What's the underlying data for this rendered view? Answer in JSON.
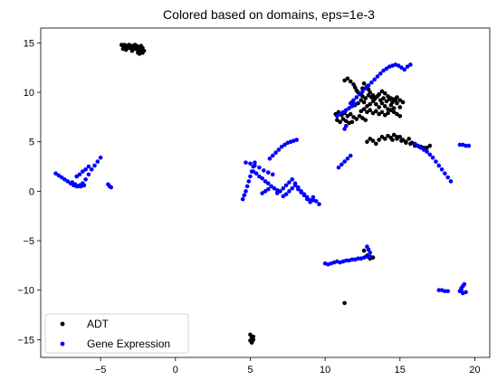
{
  "chart_data": {
    "type": "scatter",
    "title": "Colored based on domains, eps=1e-3",
    "xlabel": "",
    "ylabel": "",
    "xlim": [
      -9,
      21
    ],
    "ylim": [
      -16.8,
      16.5
    ],
    "xticks": [
      -5,
      0,
      5,
      10,
      15,
      20
    ],
    "yticks": [
      -15,
      -10,
      -5,
      0,
      5,
      10,
      15
    ],
    "xtick_labels": [
      "−5",
      "0",
      "5",
      "10",
      "15",
      "20"
    ],
    "ytick_labels": [
      "−15",
      "−10",
      "−5",
      "0",
      "5",
      "10",
      "15"
    ],
    "grid": false,
    "legend_position": "lower-left",
    "series": [
      {
        "name": "ADT",
        "color": "#000000",
        "x": [
          -3.6,
          -3.5,
          -3.4,
          -3.3,
          -3.2,
          -3.1,
          -3.0,
          -2.9,
          -2.8,
          -2.7,
          -2.6,
          -2.5,
          -2.4,
          -2.3,
          -2.2,
          -2.1,
          -3.5,
          -3.3,
          -3.1,
          -2.9,
          -2.7,
          -2.5,
          -2.3,
          -2.5,
          -2.4,
          -2.3,
          -2.2,
          -2.6,
          -2.3,
          5.0,
          5.1,
          5.2,
          5.1,
          5.0,
          5.2,
          5.1,
          11.3,
          11.3,
          11.5,
          11.7,
          11.9,
          12.0,
          12.1,
          12.2,
          12.4,
          12.5,
          12.6,
          12.8,
          12.9,
          13.0,
          13.2,
          13.4,
          13.6,
          13.8,
          14.0,
          14.2,
          14.4,
          14.6,
          14.8,
          15.0,
          15.2,
          11.8,
          12.0,
          12.2,
          12.4,
          12.6,
          12.8,
          13.0,
          13.2,
          13.4,
          13.6,
          13.8,
          14.0,
          14.2,
          14.4,
          14.6,
          14.8,
          15.0,
          12.5,
          12.7,
          12.9,
          13.1,
          13.3,
          13.5,
          13.7,
          13.9,
          14.1,
          14.3,
          14.5,
          14.7,
          12.4,
          12.6,
          12.8,
          13.0,
          13.2,
          13.4,
          13.6,
          13.8,
          14.0,
          14.2,
          14.4,
          14.6,
          14.8,
          15.0,
          10.7,
          10.9,
          11.1,
          11.3,
          11.5,
          11.7,
          11.9,
          12.1,
          12.3,
          12.5,
          12.7,
          10.8,
          11.0,
          11.2,
          11.4,
          11.6,
          11.8,
          12.8,
          13.0,
          13.2,
          13.4,
          13.6,
          13.8,
          14.0,
          14.2,
          14.4,
          14.6,
          14.8,
          15.0,
          15.2,
          15.4,
          15.6,
          15.8,
          16.0,
          16.2,
          16.4,
          16.6,
          16.8,
          17.0,
          14.5,
          14.8,
          15.1,
          15.4,
          15.7,
          16.0,
          16.3,
          16.6,
          12.6,
          12.8,
          13.0,
          13.2
        ],
        "y": [
          14.8,
          14.7,
          14.8,
          14.6,
          14.7,
          14.8,
          14.5,
          14.7,
          14.6,
          14.8,
          14.7,
          14.4,
          14.6,
          14.3,
          14.5,
          14.2,
          14.4,
          14.3,
          14.5,
          14.2,
          14.4,
          14.0,
          14.2,
          14.1,
          13.9,
          14.3,
          14.0,
          14.6,
          14.7,
          -14.5,
          -14.8,
          -15.0,
          -15.2,
          -15.1,
          -14.7,
          -15.3,
          -11.3,
          11.2,
          11.4,
          11.1,
          10.8,
          10.5,
          10.2,
          10.0,
          9.8,
          10.4,
          10.9,
          10.6,
          10.3,
          10.0,
          9.7,
          9.5,
          9.8,
          10.1,
          9.9,
          9.6,
          9.4,
          9.3,
          9.5,
          9.2,
          9.0,
          9.0,
          8.7,
          8.9,
          9.2,
          9.0,
          8.6,
          8.8,
          9.1,
          8.8,
          8.5,
          8.9,
          8.6,
          8.3,
          8.7,
          8.4,
          8.9,
          8.5,
          9.6,
          9.4,
          9.7,
          9.5,
          9.3,
          9.6,
          9.2,
          9.4,
          9.1,
          9.3,
          9.0,
          9.2,
          8.1,
          8.3,
          8.0,
          8.2,
          7.9,
          8.1,
          7.8,
          8.0,
          7.7,
          7.9,
          8.2,
          8.0,
          7.8,
          7.6,
          7.8,
          8.0,
          7.7,
          7.9,
          7.6,
          7.8,
          7.5,
          7.3,
          7.6,
          7.4,
          7.2,
          7.2,
          7.0,
          7.3,
          7.1,
          6.9,
          7.0,
          5.0,
          5.3,
          5.1,
          4.8,
          5.2,
          5.5,
          5.3,
          5.6,
          5.4,
          5.7,
          5.3,
          5.5,
          5.2,
          5.0,
          5.3,
          4.9,
          4.7,
          4.6,
          4.5,
          4.3,
          4.4,
          4.6,
          5.2,
          5.5,
          5.1,
          4.9,
          4.8,
          4.6,
          4.5,
          4.4,
          -6.0,
          -6.5,
          -6.8,
          -6.7
        ]
      },
      {
        "name": "Gene Expression",
        "color": "#0000ff",
        "x": [
          -8.0,
          -7.8,
          -7.6,
          -7.4,
          -7.2,
          -7.0,
          -6.8,
          -6.6,
          -6.4,
          -6.2,
          -6.0,
          -5.8,
          -5.6,
          -5.4,
          -5.2,
          -5.0,
          -6.9,
          -6.7,
          -6.5,
          -6.3,
          -6.1,
          -6.6,
          -6.4,
          -6.2,
          -6.0,
          -5.8,
          -4.5,
          -4.4,
          -4.3,
          4.5,
          4.6,
          4.7,
          4.8,
          4.9,
          5.0,
          5.1,
          5.2,
          5.3,
          4.7,
          5.0,
          5.3,
          5.6,
          5.9,
          6.2,
          6.5,
          5.2,
          5.4,
          5.6,
          5.8,
          6.0,
          6.2,
          6.4,
          6.6,
          6.8,
          6.3,
          6.5,
          6.7,
          6.9,
          7.1,
          7.3,
          7.5,
          7.7,
          7.9,
          8.1,
          6.8,
          7.0,
          7.2,
          7.4,
          7.6,
          7.8,
          8.0,
          8.2,
          8.4,
          8.6,
          8.8,
          9.0,
          9.2,
          9.4,
          9.6,
          7.2,
          7.4,
          7.6,
          7.8,
          8.0,
          8.2,
          8.4,
          8.6,
          8.8,
          9.0,
          9.2,
          5.8,
          6.0,
          6.2,
          10.8,
          11.0,
          11.2,
          11.4,
          11.6,
          11.8,
          12.0,
          11.3,
          11.4,
          11.7,
          11.9,
          12.1,
          12.3,
          12.5,
          12.7,
          12.9,
          13.1,
          13.3,
          13.5,
          13.7,
          13.9,
          14.1,
          14.3,
          14.5,
          14.7,
          14.9,
          15.1,
          15.3,
          15.5,
          15.7,
          10.9,
          11.1,
          11.3,
          11.5,
          11.7,
          16.0,
          16.2,
          16.4,
          16.6,
          16.8,
          17.0,
          17.2,
          17.4,
          17.6,
          17.8,
          18.0,
          18.2,
          18.4,
          19.0,
          19.2,
          19.4,
          19.6,
          10.0,
          10.2,
          10.4,
          10.6,
          10.8,
          11.0,
          11.2,
          11.4,
          11.6,
          11.8,
          12.0,
          12.2,
          12.4,
          12.6,
          12.8,
          13.0,
          12.8,
          12.9,
          13.0,
          17.6,
          17.8,
          18.0,
          18.2,
          19.0,
          19.1,
          19.2,
          19.3,
          19.4,
          19.2,
          19.1
        ],
        "y": [
          1.8,
          1.6,
          1.4,
          1.2,
          1.0,
          0.8,
          0.6,
          0.5,
          0.6,
          0.8,
          1.2,
          1.7,
          2.2,
          2.6,
          3.0,
          3.4,
          0.9,
          0.7,
          0.5,
          0.5,
          0.6,
          1.5,
          1.7,
          2.0,
          2.2,
          2.5,
          0.7,
          0.5,
          0.4,
          -0.8,
          -0.4,
          0.0,
          0.5,
          1.0,
          1.5,
          2.0,
          2.5,
          2.9,
          2.9,
          2.8,
          2.6,
          2.4,
          2.1,
          1.9,
          1.7,
          2.0,
          1.8,
          1.5,
          1.3,
          1.0,
          0.8,
          0.5,
          0.3,
          0.1,
          3.3,
          3.6,
          3.9,
          4.2,
          4.5,
          4.7,
          4.9,
          5.0,
          5.1,
          5.2,
          -0.2,
          0.0,
          0.3,
          0.6,
          0.9,
          1.2,
          0.8,
          0.4,
          0.0,
          -0.3,
          -0.6,
          -0.9,
          -0.6,
          -1.0,
          -1.3,
          -0.5,
          -0.3,
          0.0,
          0.3,
          0.6,
          0.2,
          -0.1,
          -0.4,
          -0.8,
          -1.1,
          -0.9,
          -0.2,
          0.0,
          0.2,
          7.6,
          7.8,
          8.0,
          8.2,
          8.4,
          8.6,
          8.8,
          6.3,
          6.6,
          8.9,
          9.2,
          9.5,
          9.8,
          10.1,
          10.4,
          10.7,
          11.0,
          11.3,
          11.6,
          11.9,
          12.2,
          12.4,
          12.6,
          12.7,
          12.8,
          12.7,
          12.5,
          12.3,
          12.6,
          12.8,
          2.4,
          2.7,
          3.0,
          3.3,
          3.6,
          4.8,
          4.6,
          4.4,
          4.2,
          4.0,
          3.7,
          3.4,
          3.0,
          2.6,
          2.2,
          1.8,
          1.4,
          1.0,
          4.7,
          4.7,
          4.6,
          4.6,
          -7.3,
          -7.4,
          -7.3,
          -7.2,
          -7.1,
          -7.2,
          -7.1,
          -7.0,
          -7.0,
          -6.9,
          -6.9,
          -6.8,
          -6.8,
          -6.7,
          -6.6,
          -6.6,
          -5.6,
          -5.9,
          -6.2,
          -10.0,
          -10.0,
          -10.1,
          -10.1,
          -10.1,
          -9.8,
          -9.6,
          -9.4,
          -10.2,
          -10.3,
          -10.0
        ]
      }
    ]
  }
}
